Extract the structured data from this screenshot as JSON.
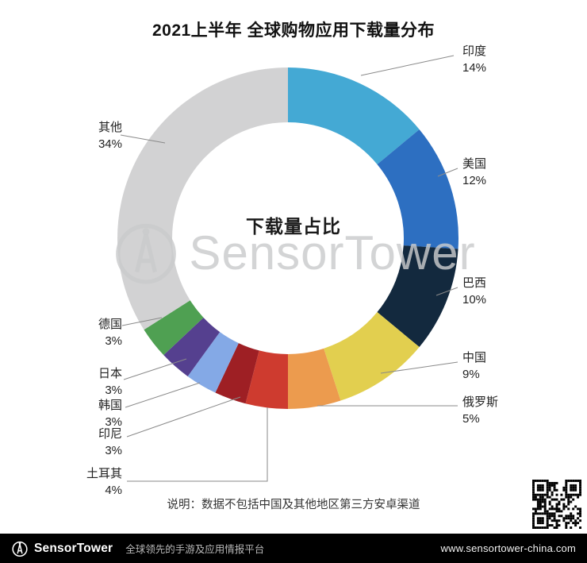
{
  "chart_data": {
    "type": "pie",
    "variant": "donut",
    "title": "2021上半年 全球购物应用下载量分布",
    "center_label": "下载量占比",
    "note": "说明：数据不包括中国及其他地区第三方安卓渠道",
    "legend_position": "around-callouts",
    "slices": [
      {
        "label": "印度",
        "value": 14,
        "pct_text": "14%",
        "color": "#44A9D4"
      },
      {
        "label": "美国",
        "value": 12,
        "pct_text": "12%",
        "color": "#2D6FC1"
      },
      {
        "label": "巴西",
        "value": 10,
        "pct_text": "10%",
        "color": "#13293E"
      },
      {
        "label": "中国",
        "value": 9,
        "pct_text": "9%",
        "color": "#E2CF4F"
      },
      {
        "label": "俄罗斯",
        "value": 5,
        "pct_text": "5%",
        "color": "#EC9B4E"
      },
      {
        "label": "土耳其",
        "value": 4,
        "pct_text": "4%",
        "color": "#CE3B2F"
      },
      {
        "label": "印尼",
        "value": 3,
        "pct_text": "3%",
        "color": "#9E1F24"
      },
      {
        "label": "韩国",
        "value": 3,
        "pct_text": "3%",
        "color": "#84A9E6"
      },
      {
        "label": "日本",
        "value": 3,
        "pct_text": "3%",
        "color": "#55408F"
      },
      {
        "label": "德国",
        "value": 3,
        "pct_text": "3%",
        "color": "#4FA052"
      },
      {
        "label": "其他",
        "value": 34,
        "pct_text": "34%",
        "color": "#D2D2D3"
      }
    ]
  },
  "watermark": {
    "text": "SensorTower"
  },
  "footer": {
    "brand": "SensorTower",
    "tagline": "全球领先的手游及应用情报平台",
    "url": "www.sensortower-china.com"
  }
}
